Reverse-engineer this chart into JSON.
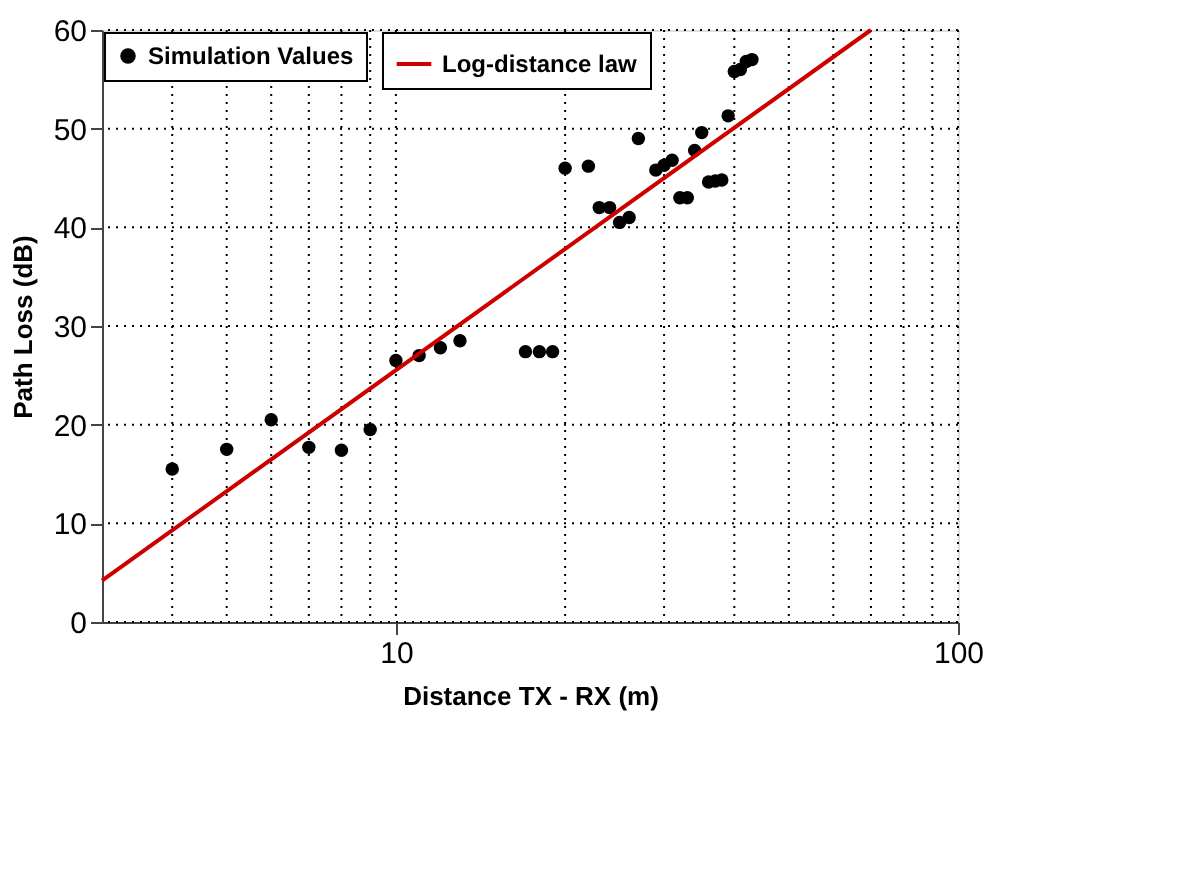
{
  "chart_data": {
    "type": "scatter",
    "xlabel": "Distance TX - RX (m)",
    "ylabel": "Path Loss (dB)",
    "xlim": [
      3,
      100
    ],
    "xticks": [
      10,
      100
    ],
    "ylim": [
      0,
      60
    ],
    "yticks": [
      0,
      10,
      20,
      30,
      40,
      50,
      60
    ],
    "log": "x",
    "grid": true,
    "legend": "top left",
    "series": [
      {
        "name": "Simulation Values",
        "color": "#000000",
        "marker": "circle",
        "x": [
          4,
          5,
          6,
          7,
          8,
          9,
          10,
          11,
          12,
          13,
          17,
          18,
          19,
          20,
          22,
          23,
          24,
          25,
          26,
          27,
          29,
          30,
          31,
          32,
          33,
          34,
          35,
          36,
          37,
          38,
          39,
          40,
          41,
          42,
          43
        ],
        "values": [
          15.5,
          17.5,
          20.5,
          17.7,
          17.4,
          19.5,
          26.5,
          27,
          27.8,
          28.5,
          27.4,
          27.4,
          27.4,
          46,
          46.2,
          42,
          42,
          40.5,
          41,
          49,
          45.8,
          46.3,
          46.8,
          43,
          43,
          47.8,
          49.6,
          44.6,
          44.7,
          44.8,
          51.3,
          55.8,
          56,
          56.8,
          57
        ]
      },
      {
        "name": "Log-distance law",
        "color": "#cc0000",
        "type": "line",
        "line_style": "solid",
        "marker": "none",
        "x": [
          3,
          70
        ],
        "values": [
          4.2,
          60
        ]
      }
    ]
  }
}
